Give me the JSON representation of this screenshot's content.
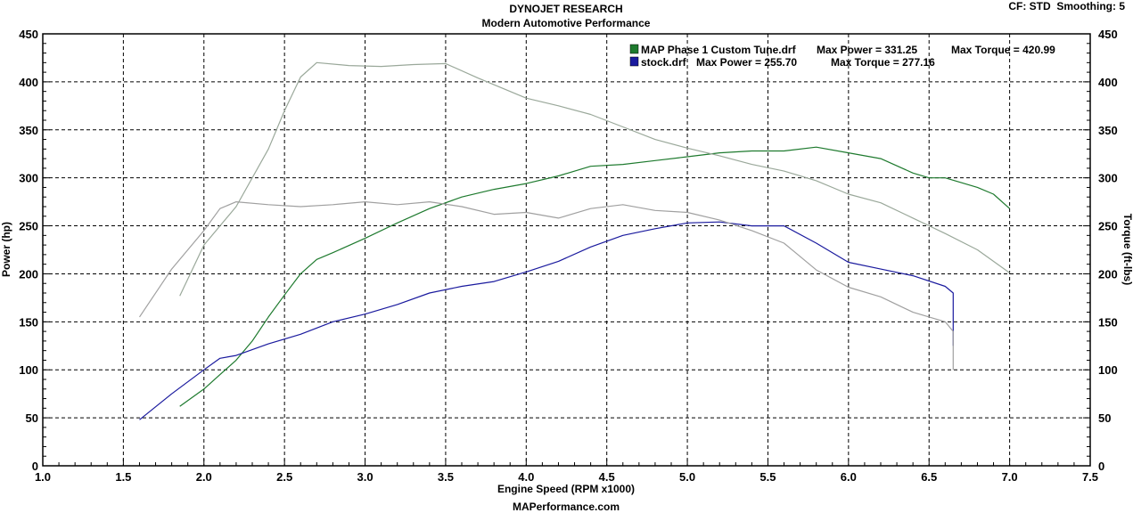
{
  "header": {
    "title": "DYNOJET RESEARCH",
    "subtitle": "Modern Automotive Performance",
    "settings": "CF: STD  Smoothing: 5"
  },
  "footer": {
    "website": "MAPerformance.com"
  },
  "chart_data": {
    "type": "line",
    "xlabel": "Engine Speed (RPM x1000)",
    "ylabel_left": "Power (hp)",
    "ylabel_right": "Torque (ft-lbs)",
    "xlim": [
      1.0,
      7.5
    ],
    "ylim": [
      0,
      450
    ],
    "x_ticks": [
      1.0,
      1.5,
      2.0,
      2.5,
      3.0,
      3.5,
      4.0,
      4.5,
      5.0,
      5.5,
      6.0,
      6.5,
      7.0,
      7.5
    ],
    "y_ticks": [
      0,
      50,
      100,
      150,
      200,
      250,
      300,
      350,
      400,
      450
    ],
    "grid": true,
    "legend": [
      {
        "file": "MAP Phase 1 Custom Tune.drf",
        "max_power": "Max Power = 331.25",
        "max_torque": "Max Torque = 420.99",
        "color": "#1e7a2e"
      },
      {
        "file": "stock.drf",
        "max_power": "Max Power = 255.70",
        "max_torque": "Max Torque = 277.16",
        "color": "#1a1a9e"
      }
    ],
    "series": [
      {
        "name": "MAP Phase 1 Custom Tune.drf",
        "measure": "power",
        "color": "#1e7a2e",
        "x": [
          1.85,
          2.0,
          2.1,
          2.2,
          2.3,
          2.4,
          2.5,
          2.6,
          2.7,
          2.8,
          3.0,
          3.2,
          3.4,
          3.6,
          3.8,
          4.0,
          4.2,
          4.4,
          4.6,
          4.8,
          5.0,
          5.2,
          5.4,
          5.6,
          5.8,
          6.0,
          6.2,
          6.4,
          6.5,
          6.6,
          6.8,
          6.9,
          7.0
        ],
        "y": [
          62,
          80,
          95,
          110,
          130,
          155,
          178,
          200,
          215,
          222,
          237,
          253,
          268,
          280,
          288,
          294,
          302,
          312,
          314,
          318,
          322,
          326,
          328,
          328,
          332,
          326,
          320,
          305,
          300,
          300,
          290,
          283,
          268
        ]
      },
      {
        "name": "MAP Phase 1 Custom Tune.drf",
        "measure": "torque",
        "color": "#9aa89a",
        "x": [
          1.85,
          2.0,
          2.2,
          2.4,
          2.5,
          2.6,
          2.7,
          2.9,
          3.1,
          3.3,
          3.5,
          3.7,
          4.0,
          4.2,
          4.4,
          4.6,
          4.8,
          5.0,
          5.2,
          5.4,
          5.6,
          5.8,
          6.0,
          6.2,
          6.4,
          6.6,
          6.8,
          7.0
        ],
        "y": [
          177,
          230,
          270,
          330,
          370,
          405,
          420,
          417,
          416,
          418,
          419,
          404,
          383,
          375,
          366,
          353,
          340,
          331,
          323,
          314,
          307,
          297,
          283,
          274,
          258,
          242,
          225,
          201
        ]
      },
      {
        "name": "stock.drf",
        "measure": "power",
        "color": "#1a1a9e",
        "x": [
          1.6,
          1.8,
          2.0,
          2.1,
          2.2,
          2.4,
          2.6,
          2.8,
          3.0,
          3.2,
          3.4,
          3.6,
          3.8,
          4.0,
          4.2,
          4.4,
          4.6,
          4.8,
          5.0,
          5.2,
          5.4,
          5.6,
          5.8,
          6.0,
          6.2,
          6.4,
          6.6,
          6.65,
          6.65
        ],
        "y": [
          48,
          75,
          100,
          112,
          115,
          127,
          137,
          150,
          158,
          168,
          180,
          187,
          192,
          202,
          213,
          228,
          240,
          247,
          253,
          254,
          250,
          250,
          232,
          212,
          205,
          198,
          187,
          180,
          125
        ]
      },
      {
        "name": "stock.drf",
        "measure": "torque",
        "color": "#a0a0a0",
        "x": [
          1.6,
          1.8,
          2.0,
          2.1,
          2.2,
          2.4,
          2.6,
          2.8,
          3.0,
          3.2,
          3.4,
          3.6,
          3.8,
          4.0,
          4.2,
          4.4,
          4.6,
          4.8,
          5.0,
          5.2,
          5.4,
          5.6,
          5.8,
          6.0,
          6.2,
          6.4,
          6.6,
          6.65,
          6.65
        ],
        "y": [
          155,
          205,
          245,
          268,
          275,
          272,
          270,
          272,
          275,
          272,
          275,
          270,
          262,
          264,
          258,
          268,
          272,
          266,
          264,
          256,
          245,
          232,
          204,
          186,
          176,
          160,
          150,
          140,
          100
        ]
      }
    ]
  }
}
